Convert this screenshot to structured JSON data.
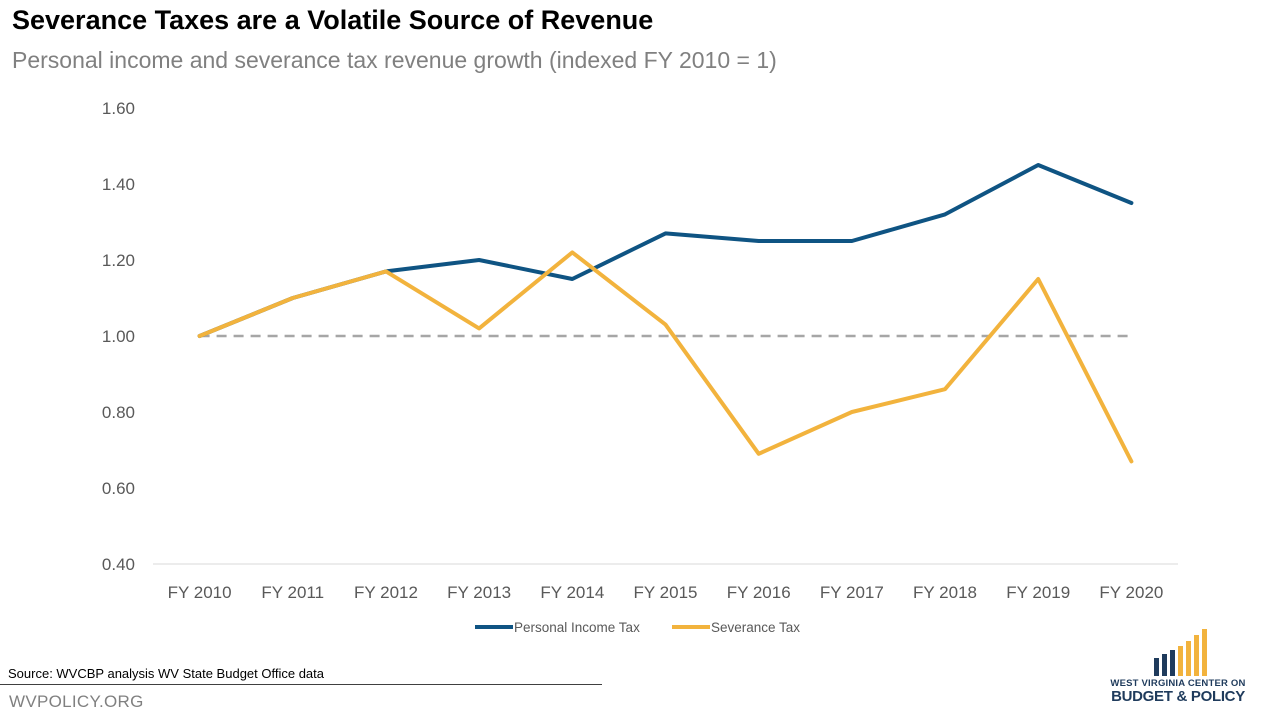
{
  "title": "Severance Taxes are a Volatile Source of Revenue",
  "subtitle": "Personal income and severance tax revenue growth (indexed FY 2010 = 1)",
  "source": "Source:  WVCBP analysis WV State Budget Office data",
  "site": "WVPOLICY.ORG",
  "logo": {
    "line1": "WEST VIRGINIA CENTER ON",
    "line2": "BUDGET & POLICY"
  },
  "colors": {
    "personal_income": "#0f5483",
    "severance": "#f2b33d",
    "reference": "#a6a6a6",
    "axis_text": "#595959"
  },
  "chart_data": {
    "type": "line",
    "title": "",
    "xlabel": "",
    "ylabel": "",
    "categories": [
      "FY 2010",
      "FY 2011",
      "FY 2012",
      "FY 2013",
      "FY 2014",
      "FY 2015",
      "FY 2016",
      "FY 2017",
      "FY 2018",
      "FY 2019",
      "FY 2020"
    ],
    "ylim": [
      0.4,
      1.6
    ],
    "yticks": [
      "0.40",
      "0.60",
      "0.80",
      "1.00",
      "1.20",
      "1.40",
      "1.60"
    ],
    "reference_line": 1.0,
    "grid": false,
    "legend": "bottom",
    "series": [
      {
        "name": "Personal Income Tax",
        "values": [
          1.0,
          1.1,
          1.17,
          1.2,
          1.15,
          1.27,
          1.25,
          1.25,
          1.32,
          1.45,
          1.35
        ]
      },
      {
        "name": "Severance Tax",
        "values": [
          1.0,
          1.1,
          1.17,
          1.02,
          1.22,
          1.03,
          0.69,
          0.8,
          0.86,
          1.15,
          0.67
        ]
      }
    ]
  }
}
